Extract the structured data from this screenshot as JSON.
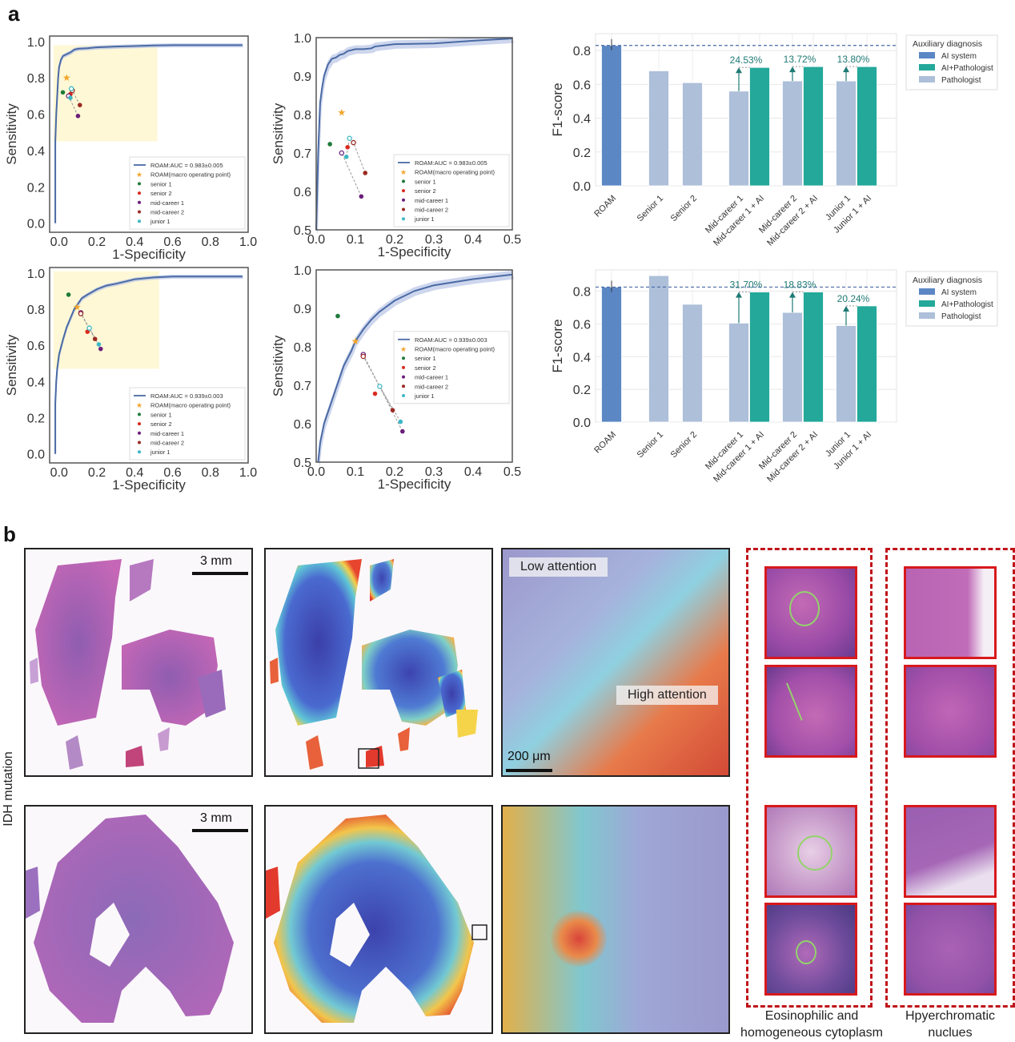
{
  "panels": {
    "a": "a",
    "b": "b"
  },
  "chart_data": [
    {
      "type": "line",
      "id": "roc-full-top",
      "xlabel": "1-Specificity",
      "ylabel": "Sensitivity",
      "xlim": [
        -0.05,
        1.0
      ],
      "ylim": [
        -0.05,
        1.03
      ],
      "xticks": [
        "0.0",
        "0.2",
        "0.4",
        "0.6",
        "0.8",
        "1.0"
      ],
      "yticks": [
        "0.0",
        "0.2",
        "0.4",
        "0.6",
        "0.8",
        "1.0"
      ],
      "highlight_region": {
        "x": [
          -0.03,
          0.52
        ],
        "y": [
          0.45,
          0.98
        ]
      },
      "curve": {
        "name": "ROAM:AUC = 0.983±0.005",
        "x": [
          -0.02,
          -0.02,
          -0.015,
          -0.01,
          -0.005,
          0.0,
          0.01,
          0.02,
          0.04,
          0.06,
          0.08,
          0.1,
          0.15,
          0.2,
          0.3,
          0.4,
          0.5,
          0.6,
          0.8,
          0.97
        ],
        "y": [
          0.0,
          0.45,
          0.6,
          0.7,
          0.8,
          0.86,
          0.9,
          0.92,
          0.93,
          0.94,
          0.955,
          0.96,
          0.963,
          0.968,
          0.972,
          0.975,
          0.978,
          0.98,
          0.98,
          0.98
        ]
      },
      "operating_point": {
        "name": "ROAM(macro operating point)",
        "x": 0.04,
        "y": 0.8
      },
      "readers": [
        {
          "name": "senior 1",
          "x": 0.02,
          "y": 0.72,
          "x_ai": null,
          "y_ai": null
        },
        {
          "name": "senior 2",
          "x": 0.06,
          "y": 0.71,
          "x_ai": null,
          "y_ai": null
        },
        {
          "name": "mid-career 1",
          "x": 0.1,
          "y": 0.59,
          "x_ai": 0.05,
          "y_ai": 0.7
        },
        {
          "name": "mid-career 2",
          "x": 0.11,
          "y": 0.65,
          "x_ai": 0.07,
          "y_ai": 0.73
        },
        {
          "name": "junior 1",
          "x": 0.06,
          "y": 0.69,
          "x_ai": 0.065,
          "y_ai": 0.74
        }
      ],
      "legend": "bottom-right"
    },
    {
      "type": "line",
      "id": "roc-zoom-top",
      "xlabel": "1-Specificity",
      "ylabel": "Sensitivity",
      "xlim": [
        0.0,
        0.5
      ],
      "ylim": [
        0.5,
        1.0
      ],
      "xticks": [
        "0.0",
        "0.1",
        "0.2",
        "0.3",
        "0.4",
        "0.5"
      ],
      "yticks": [
        "0.5",
        "0.6",
        "0.7",
        "0.8",
        "0.9",
        "1.0"
      ],
      "curve": {
        "name": "ROAM:AUC = 0.983±0.005",
        "x": [
          0.0,
          0.005,
          0.01,
          0.015,
          0.02,
          0.03,
          0.04,
          0.05,
          0.06,
          0.07,
          0.08,
          0.1,
          0.12,
          0.14,
          0.15,
          0.2,
          0.3,
          0.4,
          0.5
        ],
        "y": [
          0.5,
          0.7,
          0.83,
          0.87,
          0.9,
          0.93,
          0.945,
          0.948,
          0.955,
          0.958,
          0.965,
          0.97,
          0.97,
          0.972,
          0.977,
          0.983,
          0.985,
          0.992,
          0.998
        ]
      },
      "operating_point": {
        "name": "ROAM(macro operating point)",
        "x": 0.065,
        "y": 0.805
      },
      "readers": [
        {
          "name": "senior 1",
          "x": 0.035,
          "y": 0.723,
          "x_ai": null,
          "y_ai": null
        },
        {
          "name": "senior 2",
          "x": 0.08,
          "y": 0.715,
          "x_ai": null,
          "y_ai": null
        },
        {
          "name": "mid-career 1",
          "x": 0.115,
          "y": 0.587,
          "x_ai": 0.065,
          "y_ai": 0.7
        },
        {
          "name": "mid-career 2",
          "x": 0.125,
          "y": 0.648,
          "x_ai": 0.095,
          "y_ai": 0.727
        },
        {
          "name": "junior 1",
          "x": 0.077,
          "y": 0.69,
          "x_ai": 0.085,
          "y_ai": 0.738
        }
      ],
      "legend": "bottom-right"
    },
    {
      "type": "bar",
      "id": "f1-top",
      "ylabel": "F1-score",
      "ylim": [
        0.0,
        0.9
      ],
      "yticks": [
        "0.0",
        "0.2",
        "0.4",
        "0.6",
        "0.8"
      ],
      "reference_line": 0.83,
      "categories": [
        "ROAM",
        "Senior 1",
        "Senior 2",
        "Mid-career 1",
        "Mid-career 1 + AI",
        "Mid-career 2",
        "Mid-career 2 + AI",
        "Junior 1",
        "Junior 1 + AI"
      ],
      "values": [
        0.83,
        0.68,
        0.61,
        0.56,
        0.7,
        0.62,
        0.705,
        0.62,
        0.705
      ],
      "groups": [
        "AI system",
        "Pathologist",
        "Pathologist",
        "Pathologist",
        "AI+Pathologist",
        "Pathologist",
        "AI+Pathologist",
        "Pathologist",
        "AI+Pathologist"
      ],
      "improvements": [
        {
          "from": 3,
          "to": 4,
          "label": "24.53%"
        },
        {
          "from": 5,
          "to": 6,
          "label": "13.72%"
        },
        {
          "from": 7,
          "to": 8,
          "label": "13.80%"
        }
      ],
      "legend_title": "Auxiliary diagnosis",
      "legend": [
        {
          "name": "AI system",
          "color": "#5b87c5"
        },
        {
          "name": "AI+Pathologist",
          "color": "#23a89a"
        },
        {
          "name": "Pathologist",
          "color": "#adbfd9"
        }
      ]
    },
    {
      "type": "line",
      "id": "roc-full-bottom",
      "xlabel": "1-Specificity",
      "ylabel": "Sensitivity",
      "xlim": [
        -0.05,
        1.0
      ],
      "ylim": [
        -0.05,
        1.03
      ],
      "xticks": [
        "0.0",
        "0.2",
        "0.4",
        "0.6",
        "0.8",
        "1.0"
      ],
      "yticks": [
        "0.0",
        "0.2",
        "0.4",
        "0.6",
        "0.8",
        "1.0"
      ],
      "highlight_region": {
        "x": [
          -0.03,
          0.53
        ],
        "y": [
          0.47,
          1.01
        ]
      },
      "curve": {
        "name": "ROAM:AUC = 0.939±0.003",
        "x": [
          -0.02,
          -0.02,
          -0.015,
          -0.01,
          0.0,
          0.02,
          0.04,
          0.06,
          0.08,
          0.1,
          0.12,
          0.15,
          0.2,
          0.25,
          0.3,
          0.4,
          0.5,
          0.6,
          0.8,
          0.97
        ],
        "y": [
          0.0,
          0.28,
          0.4,
          0.47,
          0.55,
          0.63,
          0.7,
          0.75,
          0.8,
          0.83,
          0.86,
          0.88,
          0.91,
          0.93,
          0.94,
          0.965,
          0.975,
          0.98,
          0.98,
          0.98
        ]
      },
      "operating_point": {
        "name": "ROAM(macro operating point)",
        "x": 0.095,
        "y": 0.81
      },
      "readers": [
        {
          "name": "senior 1",
          "x": 0.05,
          "y": 0.88,
          "x_ai": null,
          "y_ai": null
        },
        {
          "name": "senior 2",
          "x": 0.15,
          "y": 0.675,
          "x_ai": null,
          "y_ai": null
        },
        {
          "name": "mid-career 1",
          "x": 0.22,
          "y": 0.58,
          "x_ai": 0.115,
          "y_ai": 0.78
        },
        {
          "name": "mid-career 2",
          "x": 0.19,
          "y": 0.635,
          "x_ai": 0.115,
          "y_ai": 0.775
        },
        {
          "name": "junior 1",
          "x": 0.21,
          "y": 0.605,
          "x_ai": 0.16,
          "y_ai": 0.695
        }
      ],
      "legend": "bottom-right"
    },
    {
      "type": "line",
      "id": "roc-zoom-bottom",
      "xlabel": "1-Specificity",
      "ylabel": "Sensitivity",
      "xlim": [
        0.0,
        0.5
      ],
      "ylim": [
        0.5,
        1.0
      ],
      "xticks": [
        "0.0",
        "0.1",
        "0.2",
        "0.3",
        "0.4",
        "0.5"
      ],
      "yticks": [
        "0.5",
        "0.6",
        "0.7",
        "0.8",
        "0.9",
        "1.0"
      ],
      "curve": {
        "name": "ROAM:AUC = 0.939±0.003",
        "x": [
          0.005,
          0.01,
          0.02,
          0.03,
          0.04,
          0.05,
          0.06,
          0.07,
          0.08,
          0.09,
          0.1,
          0.12,
          0.14,
          0.16,
          0.18,
          0.2,
          0.25,
          0.3,
          0.35,
          0.4,
          0.45,
          0.5
        ],
        "y": [
          0.5,
          0.55,
          0.6,
          0.63,
          0.66,
          0.69,
          0.72,
          0.75,
          0.77,
          0.79,
          0.815,
          0.845,
          0.87,
          0.89,
          0.905,
          0.92,
          0.945,
          0.96,
          0.968,
          0.976,
          0.982,
          0.988
        ]
      },
      "operating_point": {
        "name": "ROAM(macro operating point)",
        "x": 0.1,
        "y": 0.815
      },
      "readers": [
        {
          "name": "senior 1",
          "x": 0.055,
          "y": 0.88,
          "x_ai": null,
          "y_ai": null
        },
        {
          "name": "senior 2",
          "x": 0.15,
          "y": 0.678,
          "x_ai": null,
          "y_ai": null
        },
        {
          "name": "mid-career 1",
          "x": 0.22,
          "y": 0.58,
          "x_ai": 0.12,
          "y_ai": 0.78
        },
        {
          "name": "mid-career 2",
          "x": 0.195,
          "y": 0.635,
          "x_ai": 0.12,
          "y_ai": 0.775
        },
        {
          "name": "junior 1",
          "x": 0.215,
          "y": 0.605,
          "x_ai": 0.162,
          "y_ai": 0.697
        }
      ],
      "legend": "center-right"
    },
    {
      "type": "bar",
      "id": "f1-bottom",
      "ylabel": "F1-score",
      "ylim": [
        0.0,
        0.93
      ],
      "yticks": [
        "0.0",
        "0.2",
        "0.4",
        "0.6",
        "0.8"
      ],
      "reference_line": 0.825,
      "categories": [
        "ROAM",
        "Senior 1",
        "Senior 2",
        "Mid-career 1",
        "Mid-career 1 + AI",
        "Mid-career 2",
        "Mid-career 2 + AI",
        "Junior 1",
        "Junior 1 + AI"
      ],
      "values": [
        0.825,
        0.895,
        0.72,
        0.605,
        0.795,
        0.67,
        0.795,
        0.59,
        0.71
      ],
      "groups": [
        "AI system",
        "Pathologist",
        "Pathologist",
        "Pathologist",
        "AI+Pathologist",
        "Pathologist",
        "AI+Pathologist",
        "Pathologist",
        "AI+Pathologist"
      ],
      "improvements": [
        {
          "from": 3,
          "to": 4,
          "label": "31.70%"
        },
        {
          "from": 5,
          "to": 6,
          "label": "18.83%"
        },
        {
          "from": 7,
          "to": 8,
          "label": "20.24%"
        }
      ],
      "legend_title": "Auxiliary diagnosis",
      "legend": [
        {
          "name": "AI system",
          "color": "#5b87c5"
        },
        {
          "name": "AI+Pathologist",
          "color": "#23a89a"
        },
        {
          "name": "Pathologist",
          "color": "#adbfd9"
        }
      ]
    }
  ],
  "reader_colors": {
    "senior 1": "#1e7b3a",
    "senior 2": "#d92b1f",
    "mid-career 1": "#6b1f7a",
    "mid-career 2": "#9b2b22",
    "junior 1": "#3cb8c4",
    "operating_point": "#f2a52a",
    "curve": "#4a6aa5",
    "highlight": "#fff8d6"
  },
  "panel_b": {
    "row_label": "IDH mutation",
    "scale_3mm": "3 mm",
    "scale_200um": "200 μm",
    "low_attention": "Low attention",
    "high_attention": "High attention",
    "caption_left_line1": "Eosinophilic and",
    "caption_left_line2": "homogeneous cytoplasm",
    "caption_right_line1": "Hpyerchromatic",
    "caption_right_line2": "nuclues"
  }
}
